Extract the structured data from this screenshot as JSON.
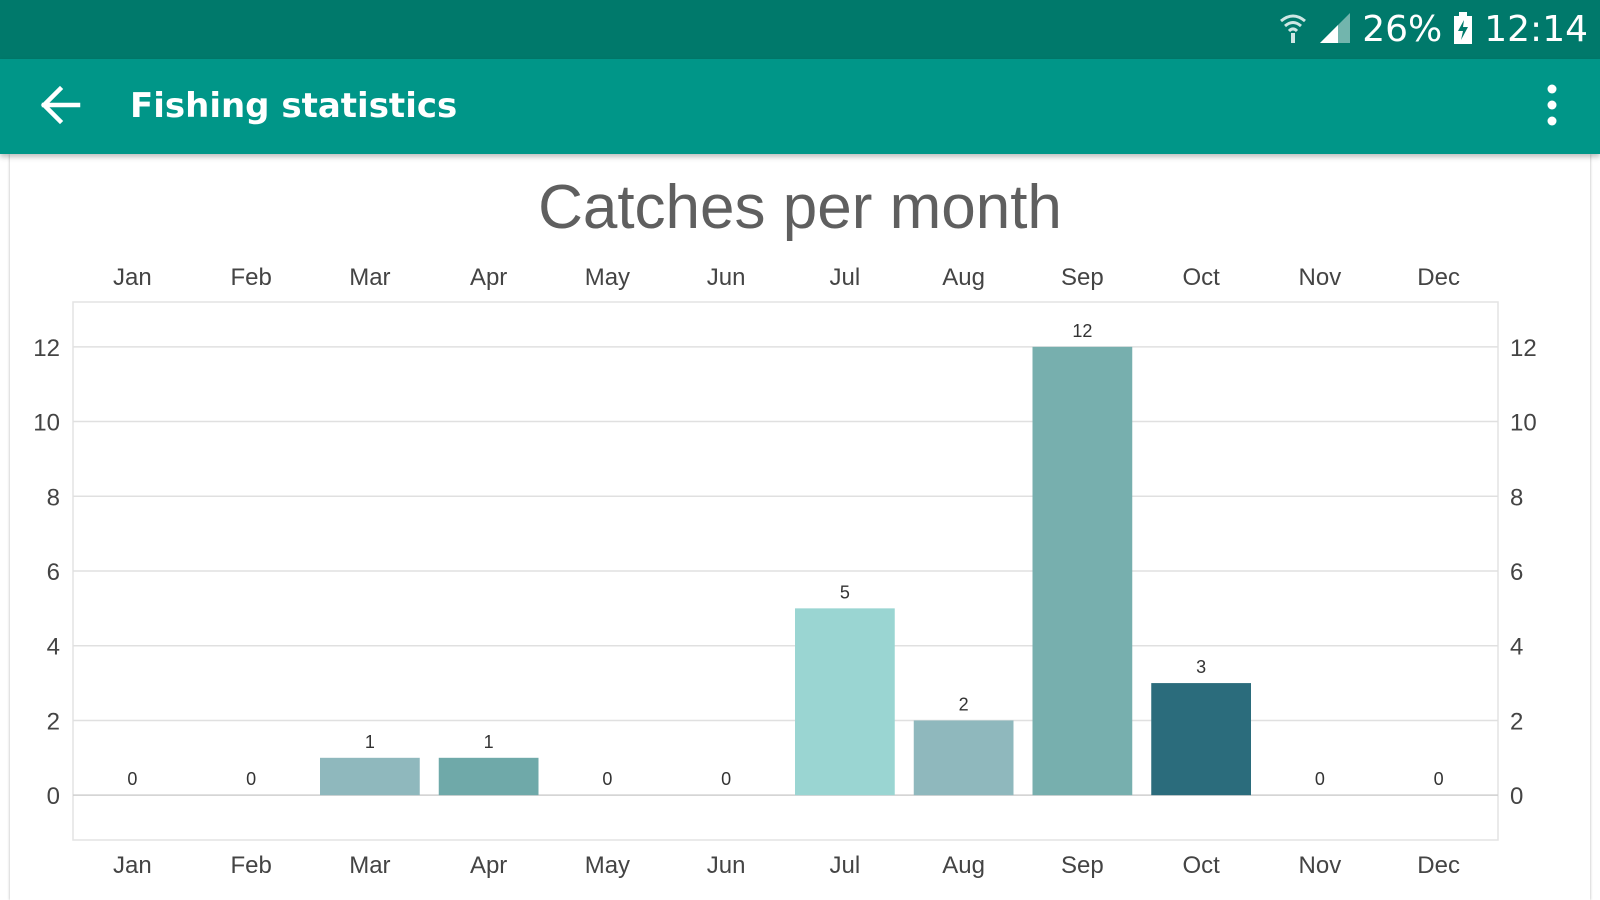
{
  "status_bar": {
    "battery_text": "26%",
    "time": "12:14",
    "icons": [
      "wifi-icon",
      "signal-icon",
      "battery-icon"
    ]
  },
  "app_bar": {
    "title": "Fishing statistics",
    "back_icon": "back-arrow-icon",
    "menu_icon": "more-vert-icon"
  },
  "colors": {
    "status_bar": "#00796b",
    "app_bar": "#009688"
  },
  "chart_data": {
    "type": "bar",
    "title": "Catches per month",
    "categories": [
      "Jan",
      "Feb",
      "Mar",
      "Apr",
      "May",
      "Jun",
      "Jul",
      "Aug",
      "Sep",
      "Oct",
      "Nov",
      "Dec"
    ],
    "values": [
      0,
      0,
      1,
      1,
      0,
      0,
      5,
      2,
      12,
      3,
      0,
      0
    ],
    "bar_colors": [
      "#8fb8bd",
      "#8fb8bd",
      "#8fb8bd",
      "#6fa9a9",
      "#8fb8bd",
      "#8fb8bd",
      "#9ad5d2",
      "#8fb8bd",
      "#77afae",
      "#2b6c7c",
      "#8fb8bd",
      "#8fb8bd"
    ],
    "yticks": [
      0,
      2,
      4,
      6,
      8,
      10,
      12
    ],
    "ylim": [
      -1.2,
      13.2
    ],
    "grid": true,
    "xlabel": "",
    "ylabel": ""
  }
}
